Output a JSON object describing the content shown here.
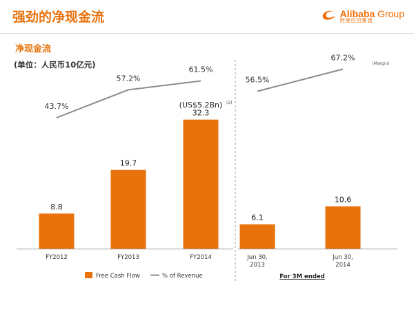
{
  "header": {
    "title": "强劲的净现金流",
    "logo_word": "Alibaba",
    "logo_group": "Group",
    "logo_sub": "阿里巴巴集团"
  },
  "section_title": "净现金流",
  "unit_label": "(单位：人民币10亿元)",
  "chart_data": [
    {
      "type": "bar+line",
      "categories": [
        "FY2012",
        "FY2013",
        "FY2014"
      ],
      "series": [
        {
          "name": "Free Cash Flow",
          "type": "bar",
          "values": [
            8.8,
            19.7,
            32.3
          ],
          "color": "#e8720c"
        },
        {
          "name": "% of Revenue",
          "type": "line",
          "values": [
            43.7,
            57.2,
            61.5
          ],
          "labels": [
            "43.7%",
            "57.2%",
            "61.5%"
          ],
          "color": "#8c8c8c"
        }
      ],
      "value_labels": [
        "8.8",
        "19.7",
        "32.3"
      ],
      "annotation": "(US$5.2Bn)",
      "annotation_note": "(2)"
    },
    {
      "type": "bar+line",
      "categories": [
        "Jun 30,\n2013",
        "Jun 30,\n2014"
      ],
      "series": [
        {
          "name": "Free Cash Flow",
          "type": "bar",
          "values": [
            6.1,
            10.6
          ],
          "color": "#e8720c"
        },
        {
          "name": "% of Revenue",
          "type": "line",
          "values": [
            56.5,
            67.2
          ],
          "labels": [
            "56.5%",
            "67.2%"
          ],
          "color": "#8c8c8c"
        }
      ],
      "value_labels": [
        "6.1",
        "10.6"
      ],
      "margin_label": "(Margin)",
      "footnote": "For 3M ended"
    }
  ],
  "legend": {
    "bar_label": "Free Cash Flow",
    "line_label": "% of Revenue"
  },
  "colors": {
    "accent": "#e8720c",
    "line": "#8c8c8c"
  }
}
